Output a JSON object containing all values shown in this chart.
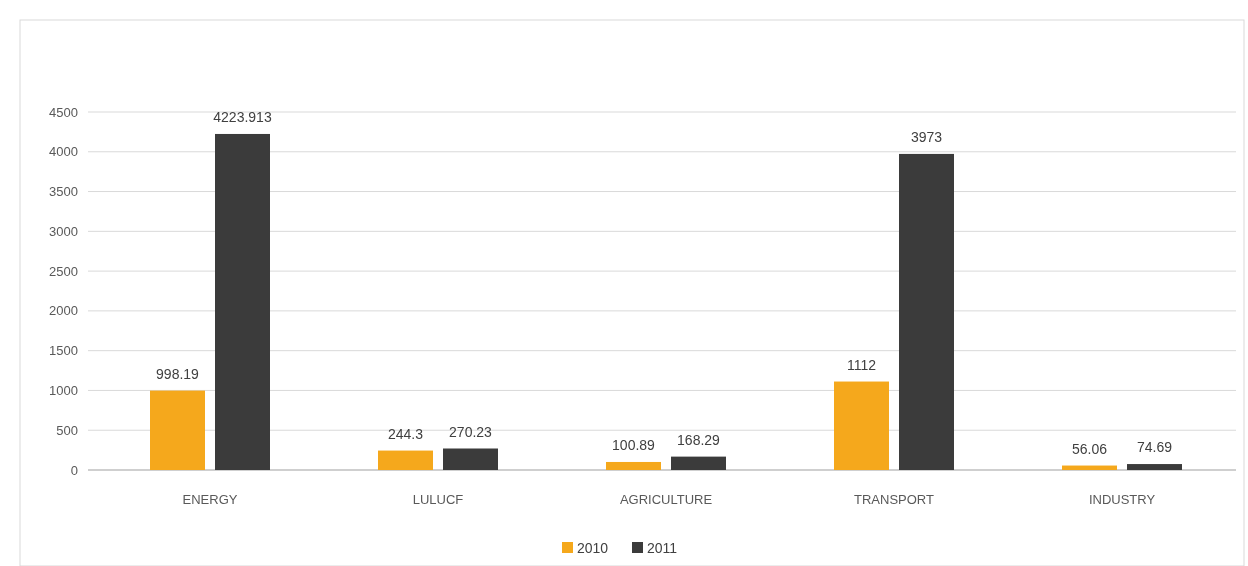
{
  "chart_data": {
    "type": "bar",
    "categories": [
      "ENERGY",
      "LULUCF",
      "AGRICULTURE",
      "TRANSPORT",
      "INDUSTRY"
    ],
    "series": [
      {
        "name": "2010",
        "color": "#f5a81c",
        "values": [
          998.19,
          244.3,
          100.89,
          1112,
          56.06
        ]
      },
      {
        "name": "2011",
        "color": "#3b3b3b",
        "values": [
          4223.913,
          270.23,
          168.29,
          3973,
          74.69
        ]
      }
    ],
    "ylim": [
      0,
      4500
    ],
    "yticks": [
      0,
      500,
      1000,
      1500,
      2000,
      2500,
      3000,
      3500,
      4000,
      4500
    ],
    "grid": "y",
    "legend": "bottom",
    "data_labels": true
  }
}
